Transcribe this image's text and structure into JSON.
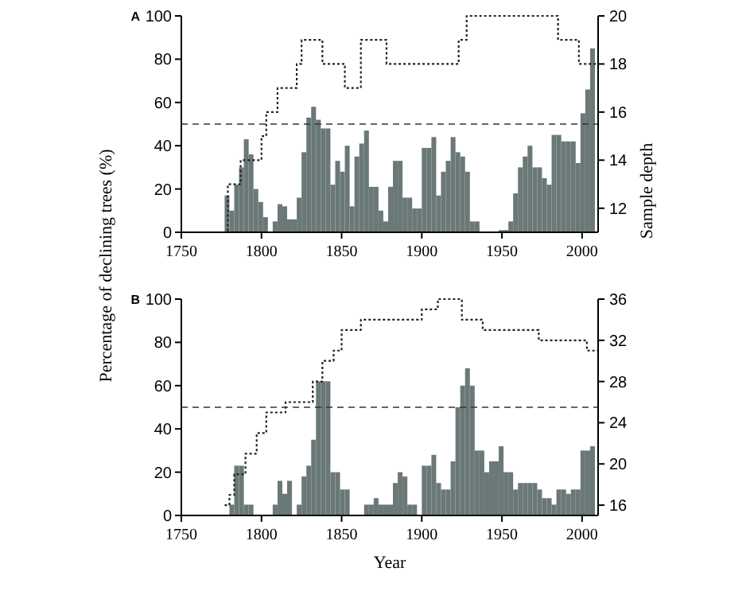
{
  "chart_data": [
    {
      "type": "bar",
      "title": "A",
      "ylabel": "Percentage of declining trees (%)",
      "y2label": "Sample depth",
      "xlim": [
        1750,
        2010
      ],
      "xticks": [
        1750,
        1800,
        1850,
        1900,
        1950,
        2000
      ],
      "ylim": [
        0,
        100
      ],
      "yticks": [
        0,
        20,
        40,
        60,
        80,
        100
      ],
      "y2lim": [
        11,
        20
      ],
      "y2ticks": [
        12,
        14,
        16,
        18,
        20
      ],
      "ref_lines": [
        {
          "axis": "y",
          "value": 50,
          "line_style": "dashed",
          "color": "#333333"
        }
      ],
      "series": [
        {
          "color": "#6b7878",
          "x": [
            1777,
            1780,
            1783,
            1786,
            1789,
            1792,
            1795,
            1798,
            1801,
            1804,
            1807,
            1810,
            1813,
            1816,
            1819,
            1822,
            1825,
            1828,
            1831,
            1834,
            1837,
            1840,
            1843,
            1846,
            1849,
            1852,
            1855,
            1858,
            1861,
            1864,
            1867,
            1870,
            1873,
            1876,
            1879,
            1882,
            1885,
            1888,
            1891,
            1894,
            1897,
            1900,
            1903,
            1906,
            1909,
            1912,
            1915,
            1918,
            1921,
            1924,
            1927,
            1930,
            1933,
            1936,
            1939,
            1942,
            1945,
            1948,
            1951,
            1954,
            1957,
            1960,
            1963,
            1966,
            1969,
            1972,
            1975,
            1978,
            1981,
            1984,
            1987,
            1990,
            1993,
            1996,
            1999,
            2002,
            2005
          ],
          "values": [
            17,
            10,
            22,
            30,
            43,
            36,
            20,
            14,
            7,
            0,
            5,
            13,
            12,
            6,
            6,
            16,
            37,
            53,
            58,
            52,
            48,
            48,
            22,
            33,
            28,
            40,
            12,
            35,
            41,
            47,
            21,
            21,
            10,
            5,
            21,
            33,
            33,
            16,
            16,
            11,
            11,
            39,
            39,
            44,
            17,
            28,
            33,
            44,
            37,
            35,
            28,
            5,
            5,
            0,
            0,
            0,
            0,
            1,
            1,
            5,
            18,
            30,
            35,
            40,
            30,
            30,
            25,
            22,
            45,
            45,
            42,
            42,
            42,
            32,
            55,
            66,
            85
          ]
        },
        {
          "type": "step",
          "axis": "y2",
          "color": "#222222",
          "line_style": "dotted",
          "x": [
            1750,
            1779,
            1787,
            1800,
            1803,
            1810,
            1822,
            1825,
            1838,
            1852,
            1862,
            1878,
            1923,
            1928,
            1985,
            1998,
            2010
          ],
          "values": [
            11,
            13,
            14,
            15,
            16,
            17,
            18,
            19,
            18,
            17,
            19,
            18,
            19,
            20,
            19,
            18,
            18
          ]
        }
      ]
    },
    {
      "type": "bar",
      "title": "B",
      "xlabel": "Year",
      "xlim": [
        1750,
        2010
      ],
      "xticks": [
        1750,
        1800,
        1850,
        1900,
        1950,
        2000
      ],
      "ylim": [
        0,
        100
      ],
      "yticks": [
        0,
        20,
        40,
        60,
        80,
        100
      ],
      "y2lim": [
        15,
        36
      ],
      "y2ticks": [
        16,
        20,
        24,
        28,
        32,
        36
      ],
      "ref_lines": [
        {
          "axis": "y",
          "value": 50,
          "line_style": "dashed",
          "color": "#333333"
        }
      ],
      "series": [
        {
          "color": "#6b7878",
          "x": [
            1777,
            1780,
            1783,
            1786,
            1789,
            1792,
            1795,
            1798,
            1801,
            1804,
            1807,
            1810,
            1813,
            1816,
            1819,
            1822,
            1825,
            1828,
            1831,
            1834,
            1837,
            1840,
            1843,
            1846,
            1849,
            1852,
            1855,
            1858,
            1861,
            1864,
            1867,
            1870,
            1873,
            1876,
            1879,
            1882,
            1885,
            1888,
            1891,
            1894,
            1897,
            1900,
            1903,
            1906,
            1909,
            1912,
            1915,
            1918,
            1921,
            1924,
            1927,
            1930,
            1933,
            1936,
            1939,
            1942,
            1945,
            1948,
            1951,
            1954,
            1957,
            1960,
            1963,
            1966,
            1969,
            1972,
            1975,
            1978,
            1981,
            1984,
            1987,
            1990,
            1993,
            1996,
            1999,
            2002,
            2005
          ],
          "values": [
            0,
            5,
            23,
            23,
            5,
            5,
            0,
            0,
            0,
            0,
            5,
            16,
            10,
            16,
            0,
            5,
            18,
            23,
            35,
            62,
            62,
            62,
            20,
            20,
            12,
            12,
            0,
            0,
            0,
            5,
            5,
            8,
            5,
            5,
            5,
            15,
            20,
            18,
            5,
            5,
            0,
            23,
            23,
            28,
            15,
            12,
            12,
            25,
            50,
            60,
            68,
            60,
            30,
            30,
            20,
            25,
            25,
            32,
            20,
            20,
            12,
            15,
            15,
            15,
            15,
            12,
            8,
            8,
            5,
            12,
            12,
            10,
            12,
            12,
            30,
            30,
            32
          ]
        },
        {
          "type": "step",
          "axis": "y2",
          "color": "#222222",
          "line_style": "dotted",
          "x": [
            1777,
            1780,
            1783,
            1790,
            1797,
            1803,
            1815,
            1832,
            1838,
            1845,
            1850,
            1862,
            1900,
            1910,
            1925,
            1938,
            1973,
            2003,
            2010
          ],
          "values": [
            16,
            17,
            19,
            21,
            23,
            25,
            26,
            28,
            30,
            31,
            33,
            34,
            35,
            36,
            34,
            33,
            32,
            31,
            31
          ]
        }
      ]
    }
  ]
}
